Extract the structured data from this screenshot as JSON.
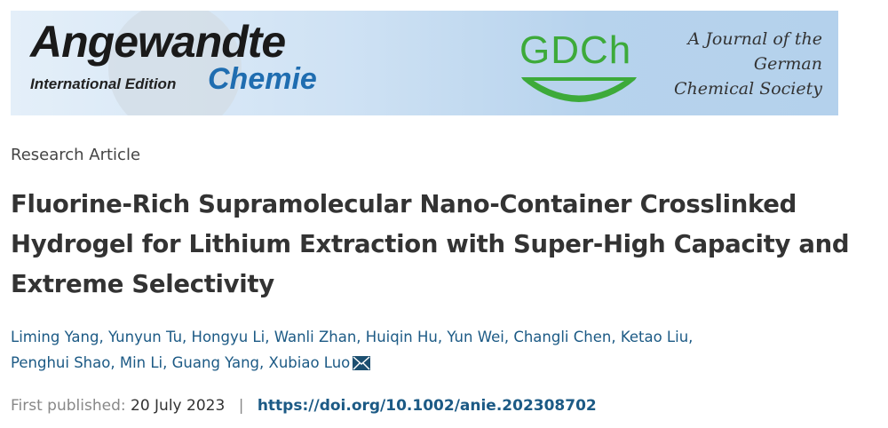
{
  "banner": {
    "journal_name": "Angewandte",
    "journal_sub": "Chemie",
    "edition": "International Edition",
    "society_logo": "GDCh",
    "society_text": [
      "A Journal of the",
      "German",
      "Chemical Society"
    ]
  },
  "article": {
    "type": "Research Article",
    "title": "Fluorine-Rich Supramolecular Nano-Container Crosslinked Hydrogel for Lithium Extraction with Super-High Capacity and Extreme Selectivity",
    "authors": [
      "Liming Yang",
      "Yunyun Tu",
      "Hongyu Li",
      "Wanli Zhan",
      "Huiqin Hu",
      "Yun Wei",
      "Changli Chen",
      "Ketao Liu",
      "Penghui Shao",
      "Min Li",
      "Guang Yang",
      "Xubiao Luo"
    ],
    "corresponding_icon": "envelope-icon",
    "published_label": "First published:",
    "published_date": "20 July 2023",
    "separator": "|",
    "doi": "https://doi.org/10.1002/anie.202308702"
  },
  "colors": {
    "link": "#1c5a85",
    "gdch_green": "#3daa3a",
    "chemie_blue": "#1f6db0"
  }
}
